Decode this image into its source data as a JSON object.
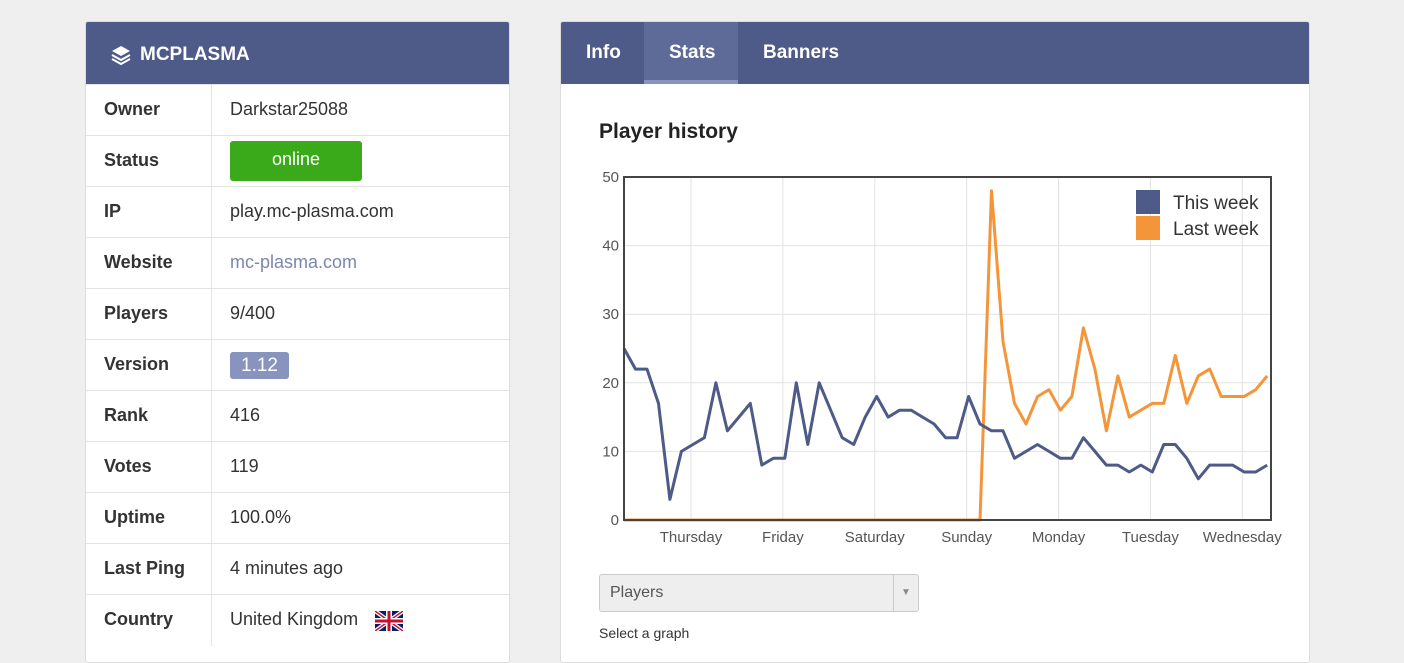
{
  "server": {
    "title": "MCPLASMA",
    "rows": [
      {
        "label": "Owner",
        "value": "Darkstar25088"
      },
      {
        "label": "Status",
        "value": "online"
      },
      {
        "label": "IP",
        "value": "play.mc-plasma.com"
      },
      {
        "label": "Website",
        "value": "mc-plasma.com"
      },
      {
        "label": "Players",
        "value": "9/400"
      },
      {
        "label": "Version",
        "value": "1.12"
      },
      {
        "label": "Rank",
        "value": "416"
      },
      {
        "label": "Votes",
        "value": "119"
      },
      {
        "label": "Uptime",
        "value": "100.0%"
      },
      {
        "label": "Last Ping",
        "value": "4 minutes ago"
      },
      {
        "label": "Country",
        "value": "United Kingdom"
      }
    ]
  },
  "tabs": [
    "Info",
    "Stats",
    "Banners"
  ],
  "graph_select": {
    "value": "Players",
    "caption": "Select a graph"
  },
  "chart_data": {
    "type": "line",
    "title": "Player history",
    "x": [
      0,
      3,
      6,
      9,
      12,
      15,
      18,
      21,
      24,
      27,
      30,
      33,
      36,
      39,
      42,
      45,
      48,
      51,
      54,
      57,
      60,
      63,
      66,
      69,
      72,
      75,
      78,
      81,
      84,
      87,
      90,
      93,
      96,
      99,
      102,
      105,
      108,
      111,
      114,
      117,
      120,
      123,
      126,
      129,
      132,
      135,
      138,
      141,
      144,
      147,
      150,
      153,
      156,
      159,
      162,
      165,
      168
    ],
    "xlim": [
      0,
      169
    ],
    "xticks": [
      {
        "value": 17.5,
        "label": "Thursday"
      },
      {
        "value": 41.5,
        "label": "Friday"
      },
      {
        "value": 65.5,
        "label": "Saturday"
      },
      {
        "value": 89.5,
        "label": "Sunday"
      },
      {
        "value": 113.5,
        "label": "Monday"
      },
      {
        "value": 137.5,
        "label": "Tuesday"
      },
      {
        "value": 161.5,
        "label": "Wednesday"
      }
    ],
    "ylim": [
      0,
      50
    ],
    "yticks": [
      0,
      10,
      20,
      30,
      40,
      50
    ],
    "grid": true,
    "legend": "top-right",
    "series": [
      {
        "name": "This week",
        "color": "#4e5a87",
        "values": [
          25,
          22,
          22,
          17,
          3,
          10,
          11,
          12,
          20,
          13,
          15,
          17,
          8,
          9,
          9,
          20,
          11,
          20,
          16,
          12,
          11,
          15,
          18,
          15,
          16,
          16,
          15,
          14,
          12,
          12,
          18,
          14,
          13,
          13,
          9,
          10,
          11,
          10,
          9,
          9,
          12,
          10,
          8,
          8,
          7,
          8,
          7,
          11,
          11,
          9,
          6,
          8,
          8,
          8,
          7,
          7,
          8
        ]
      },
      {
        "name": "Last week",
        "color": "#f5953a",
        "values": [
          0,
          0,
          0,
          0,
          0,
          0,
          0,
          0,
          0,
          0,
          0,
          0,
          0,
          0,
          0,
          0,
          0,
          0,
          0,
          0,
          0,
          0,
          0,
          0,
          0,
          0,
          0,
          0,
          0,
          0,
          0,
          0,
          48,
          26,
          17,
          14,
          18,
          19,
          16,
          18,
          28,
          22,
          13,
          21,
          15,
          16,
          17,
          17,
          24,
          17,
          21,
          22,
          18,
          18,
          18,
          19,
          21
        ]
      }
    ]
  }
}
